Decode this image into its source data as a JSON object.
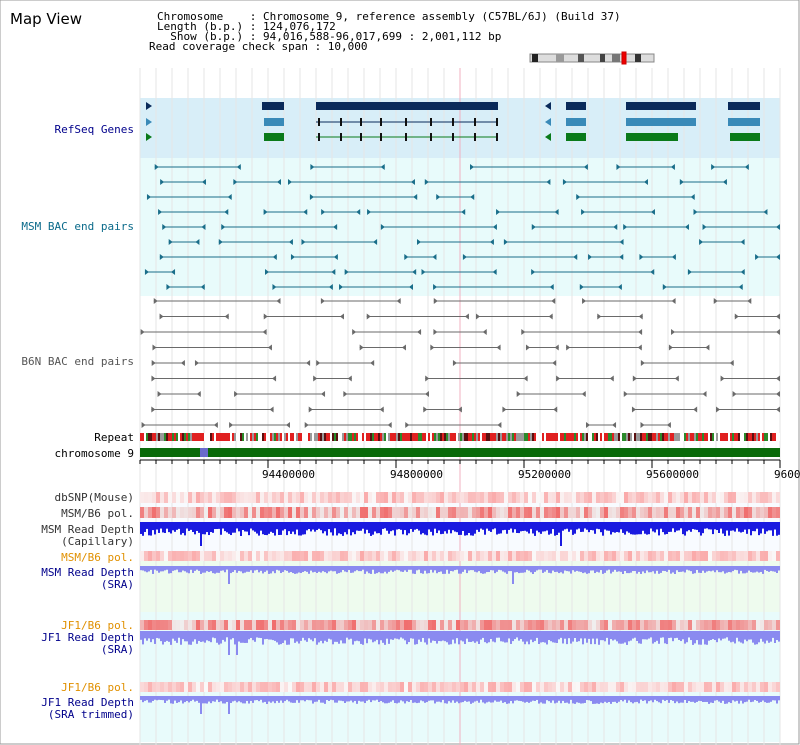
{
  "app_title": "Map View",
  "info": {
    "chromosome": "Chromosome    : Chromosome 9, reference assembly (C57BL/6J) (Build 37)",
    "length": "Length (b.p.) : 124,076,172",
    "show": "  Show (b.p.) : 94,016,588-96,017,699 : 2,001,112 bp",
    "coverage": "Read coverage check span : 10,000"
  },
  "tracks": {
    "refseq": "RefSeq Genes",
    "msm_bac": "MSM BAC end pairs",
    "b6n_bac": "B6N BAC end pairs",
    "repeat": "Repeat",
    "chromosome": "chromosome 9",
    "dbsnp": "dbSNP(Mouse)",
    "msm_b6_pol": "MSM/B6 pol.",
    "msm_read_depth_cap_1": "MSM Read Depth",
    "msm_read_depth_cap_2": "(Capillary)",
    "msm_b6_pol_2": "MSM/B6 pol.",
    "msm_read_depth_sra_1": "MSM Read Depth",
    "msm_read_depth_sra_2": "(SRA)",
    "jf1_b6_pol_1": "JF1/B6 pol.",
    "jf1_read_depth_sra_1": "JF1 Read Depth",
    "jf1_read_depth_sra_2": "(SRA)",
    "jf1_b6_pol_2": "JF1/B6 pol.",
    "jf1_read_depth_trim_1": "JF1 Read Depth",
    "jf1_read_depth_trim_2": "(SRA trimmed)"
  },
  "ruler": {
    "ticks": [
      "94400000",
      "94800000",
      "95200000",
      "95600000",
      "9600"
    ]
  },
  "colors": {
    "refseq_bg": "#d8eef8",
    "msm_bg": "#e8fbfb",
    "gene_dark": "#0a2a5a",
    "gene_mid": "#3a8ab8",
    "gene_green": "#0a7a1a",
    "msm_line": "#1a6e8a",
    "b6n_line": "#6a6a6a",
    "chromosome_green": "#0a6a0a",
    "depth_blue": "#1a1ae0",
    "depth_light": "#8a8af0",
    "label_blue": "#00008b",
    "label_teal": "#0a6a8a",
    "label_orange": "#e09000"
  }
}
